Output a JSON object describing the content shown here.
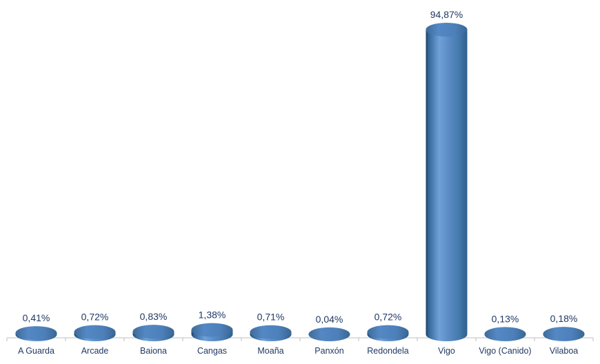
{
  "chart_data": {
    "type": "bar",
    "subtype": "3d-cylinder",
    "title": "",
    "xlabel": "",
    "ylabel": "",
    "categories": [
      "A Guarda",
      "Arcade",
      "Baiona",
      "Cangas",
      "Moaña",
      "Panxón",
      "Redondela",
      "Vigo",
      "Vigo (Canido)",
      "Vilaboa"
    ],
    "values": [
      0.41,
      0.72,
      0.83,
      1.38,
      0.71,
      0.04,
      0.72,
      94.87,
      0.13,
      0.18
    ],
    "value_labels": [
      "0,41%",
      "0,72%",
      "0,83%",
      "1,38%",
      "0,71%",
      "0,04%",
      "0,72%",
      "94,87%",
      "0,13%",
      "0,18%"
    ],
    "ylim": [
      0,
      100
    ],
    "grid": false,
    "legend_position": "none",
    "colors": {
      "bar_base": "#4f81bd",
      "bar_edge_dark": "#1f4265",
      "bar_highlight": "#6fa0d8",
      "cap_fill": "#4d80ba",
      "label_text": "#1f3864",
      "axis_line": "#bfbfbf",
      "background": "#ffffff"
    }
  }
}
